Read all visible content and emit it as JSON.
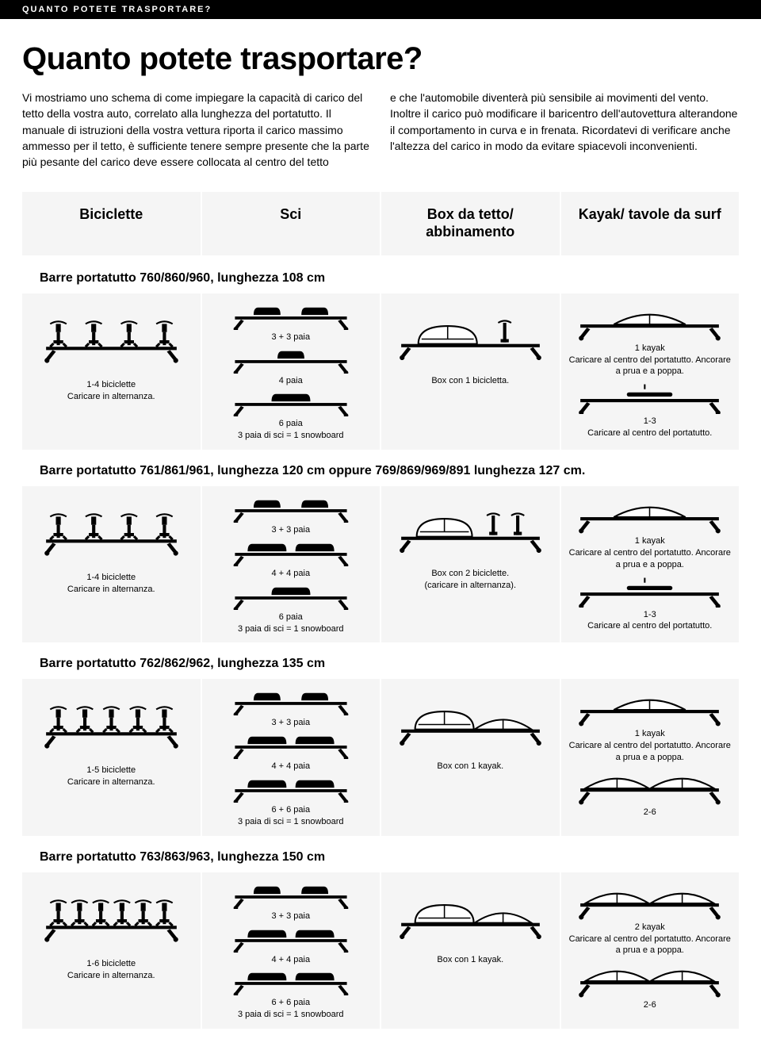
{
  "topbar": "QUANTO POTETE TRASPORTARE?",
  "title": "Quanto potete trasportare?",
  "intro": {
    "p1": "Vi mostriamo uno schema di come impiegare la capacità di carico del tetto della vostra auto, correlato alla lunghezza del portatutto. Il manuale di istruzioni della vostra vettura riporta il carico massimo ammesso per il tetto, è sufficiente tenere sempre presente che la parte più pesante del carico deve essere collocata al centro del tetto",
    "p2": "e che l'automobile diventerà più sensibile ai movimenti del vento. Inoltre il carico può modificare il baricentro dell'autovettura alterandone il comportamento in curva e in frenata. Ricordatevi di verificare anche l'altezza del carico in modo da evitare spiacevoli inconvenienti."
  },
  "headers": [
    "Biciclette",
    "Sci",
    "Box da tetto/ abbinamento",
    "Kayak/ tavole da surf"
  ],
  "sections": [
    {
      "title": "Barre portatutto 760/860/960, lunghezza 108 cm",
      "bike": {
        "count": 4,
        "l1": "1-4 biciclette",
        "l2": "Caricare in alternanza."
      },
      "ski": {
        "r1": "3 + 3 paia",
        "r2": "4 paia",
        "r3": "6 paia",
        "r3b": "3 paia di sci = 1 snowboard",
        "wide2": false,
        "wide3": false
      },
      "box": {
        "type": "bike",
        "l1": "Box con 1 bicicletta."
      },
      "kayak": {
        "top_n": 1,
        "top_l1": "1 kayak",
        "top_l2": "Caricare al centro del portatutto. Ancorare a prua e a poppa.",
        "bot_type": "surf",
        "bot_n": 1,
        "bot_l1": "1-3",
        "bot_l2": "Caricare al centro del portatutto."
      }
    },
    {
      "title": "Barre portatutto 761/861/961, lunghezza 120 cm oppure 769/869/969/891 lunghezza 127 cm.",
      "bike": {
        "count": 4,
        "l1": "1-4 biciclette",
        "l2": "Caricare in alternanza."
      },
      "ski": {
        "r1": "3 + 3 paia",
        "r2": "4 + 4 paia",
        "r3": "6 paia",
        "r3b": "3 paia di sci = 1 snowboard",
        "wide2": true,
        "wide3": false
      },
      "box": {
        "type": "bikes2",
        "l1": "Box con 2 biciclette.",
        "l2": "(caricare in alternanza)."
      },
      "kayak": {
        "top_n": 1,
        "top_l1": "1 kayak",
        "top_l2": "Caricare al centro del portatutto. Ancorare a prua e a poppa.",
        "bot_type": "surf",
        "bot_n": 1,
        "bot_l1": "1-3",
        "bot_l2": "Caricare al centro del portatutto."
      }
    },
    {
      "title": "Barre portatutto 762/862/962, lunghezza 135 cm",
      "bike": {
        "count": 5,
        "l1": "1-5 biciclette",
        "l2": "Caricare in alternanza."
      },
      "ski": {
        "r1": "3 + 3 paia",
        "r2": "4 + 4 paia",
        "r3": "6 + 6 paia",
        "r3b": "3 paia di sci = 1 snowboard",
        "wide2": true,
        "wide3": true
      },
      "box": {
        "type": "kayak",
        "l1": "Box con 1 kayak."
      },
      "kayak": {
        "top_n": 1,
        "top_l1": "1 kayak",
        "top_l2": "Caricare al centro del portatutto. Ancorare a prua e a poppa.",
        "bot_type": "kayak",
        "bot_n": 2,
        "bot_l1": "2-6",
        "bot_l2": ""
      }
    },
    {
      "title": "Barre portatutto 763/863/963, lunghezza 150 cm",
      "bike": {
        "count": 6,
        "l1": "1-6 biciclette",
        "l2": "Caricare in alternanza."
      },
      "ski": {
        "r1": "3 + 3 paia",
        "r2": "4 + 4 paia",
        "r3": "6 + 6 paia",
        "r3b": "3 paia di sci = 1 snowboard",
        "wide2": true,
        "wide3": true
      },
      "box": {
        "type": "kayak",
        "l1": "Box con 1 kayak."
      },
      "kayak": {
        "top_n": 2,
        "top_l1": "2 kayak",
        "top_l2": "Caricare al centro del portatutto. Ancorare a prua e a poppa.",
        "bot_type": "kayak",
        "bot_n": 2,
        "bot_l1": "2-6",
        "bot_l2": ""
      }
    }
  ]
}
